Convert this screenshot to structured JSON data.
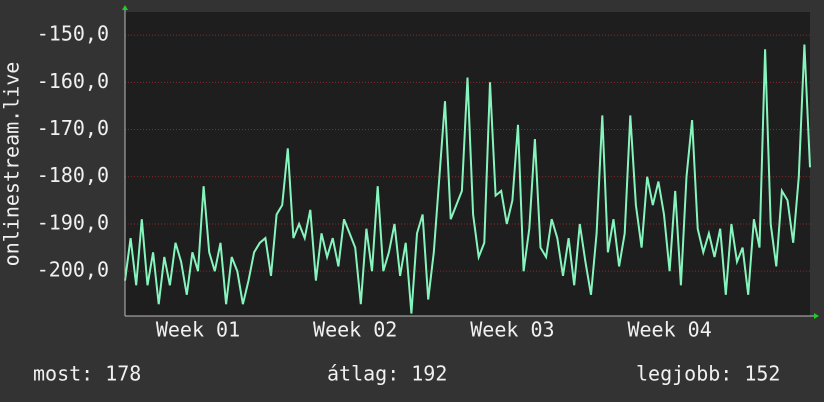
{
  "chart_data": {
    "type": "line",
    "ylabel": "onlinestream.live",
    "color": "#86f5bd",
    "grid": true,
    "xlim": [
      0,
      30.5
    ],
    "ylim": [
      -209.5,
      -145.1
    ],
    "yticks": [
      {
        "value": -150,
        "label": "-150,0"
      },
      {
        "value": -160,
        "label": "-160,0"
      },
      {
        "value": -170,
        "label": "-170,0"
      },
      {
        "value": -180,
        "label": "-180,0"
      },
      {
        "value": -190,
        "label": "-190,0"
      },
      {
        "value": -200,
        "label": "-200,0"
      }
    ],
    "xticks": [
      {
        "value": 3.25,
        "label": "Week 01"
      },
      {
        "value": 10.25,
        "label": "Week 02"
      },
      {
        "value": 17.25,
        "label": "Week 03"
      },
      {
        "value": 24.25,
        "label": "Week 04"
      }
    ],
    "x": [
      0,
      0.25,
      0.5,
      0.75,
      1,
      1.25,
      1.5,
      1.75,
      2,
      2.25,
      2.5,
      2.75,
      3,
      3.25,
      3.5,
      3.75,
      4,
      4.25,
      4.5,
      4.75,
      5,
      5.25,
      5.5,
      5.75,
      6,
      6.25,
      6.5,
      6.75,
      7,
      7.25,
      7.5,
      7.75,
      8,
      8.25,
      8.5,
      8.75,
      9,
      9.25,
      9.5,
      9.75,
      10,
      10.25,
      10.5,
      10.75,
      11,
      11.25,
      11.5,
      11.75,
      12,
      12.25,
      12.5,
      12.75,
      13,
      13.25,
      13.5,
      13.75,
      14,
      14.25,
      14.5,
      14.75,
      15,
      15.25,
      15.5,
      15.75,
      16,
      16.25,
      16.5,
      16.75,
      17,
      17.25,
      17.5,
      17.75,
      18,
      18.25,
      18.5,
      18.75,
      19,
      19.25,
      19.5,
      19.75,
      20,
      20.25,
      20.5,
      20.75,
      21,
      21.25,
      21.5,
      21.75,
      22,
      22.25,
      22.5,
      22.75,
      23,
      23.25,
      23.5,
      23.75,
      24,
      24.25,
      24.5,
      24.75,
      25,
      25.25,
      25.5,
      25.75,
      26,
      26.25,
      26.5,
      26.75,
      27,
      27.25,
      27.5,
      27.75,
      28,
      28.25,
      28.5,
      28.75,
      29,
      29.25,
      29.5,
      29.75,
      30,
      30.25,
      30.5
    ],
    "values": [
      -202,
      -193,
      -203,
      -189,
      -203,
      -196,
      -207,
      -197,
      -203,
      -194,
      -198,
      -205,
      -196,
      -200,
      -182,
      -196,
      -200,
      -194,
      -207,
      -197,
      -200,
      -207,
      -202,
      -196,
      -194,
      -193,
      -201,
      -188,
      -186,
      -174,
      -193,
      -190,
      -193,
      -187,
      -202,
      -192,
      -197,
      -193,
      -199,
      -189,
      -192,
      -195,
      -207,
      -191,
      -200,
      -182,
      -200,
      -196,
      -190,
      -201,
      -194,
      -209,
      -192,
      -188,
      -206,
      -196,
      -180,
      -164,
      -189,
      -186,
      -183,
      -159,
      -188,
      -197,
      -194,
      -160,
      -184,
      -183,
      -190,
      -185,
      -169,
      -200,
      -191,
      -172,
      -195,
      -197,
      -189,
      -193,
      -201,
      -193,
      -203,
      -190,
      -198,
      -205,
      -192,
      -167,
      -196,
      -189,
      -199,
      -192,
      -167,
      -186,
      -195,
      -180,
      -186,
      -181,
      -188,
      -200,
      -183,
      -203,
      -180,
      -168,
      -191,
      -196,
      -192,
      -197,
      -191,
      -205,
      -190,
      -198,
      -195,
      -205,
      -189,
      -195,
      -153,
      -190,
      -199,
      -183,
      -185,
      -194,
      -180,
      -152,
      -178
    ],
    "footer": [
      {
        "label": "most:",
        "value": 178
      },
      {
        "label": "átlag:",
        "value": 192
      },
      {
        "label": "legjobb:",
        "value": 152
      }
    ]
  }
}
